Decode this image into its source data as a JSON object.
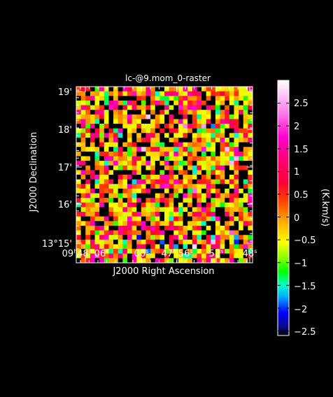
{
  "chart_data": {
    "type": "heatmap",
    "title": "lc-@9.mom_0-raster",
    "xlabel": "J2000 Right Ascension",
    "ylabel": "J2000 Declination",
    "colorbar_label": "(K.km/s)",
    "x_tick_labels": [
      {
        "main": "09",
        "h": "h",
        "mid": "48",
        "m": "m",
        "sec": "06",
        "s": "s"
      },
      {
        "main": "",
        "h": "",
        "mid": "",
        "m": "",
        "sec": "00",
        "s": "s"
      },
      {
        "main": "",
        "h": "",
        "mid": "47",
        "m": "m",
        "sec": "56",
        "s": "s"
      },
      {
        "main": "",
        "h": "",
        "mid": "",
        "m": "",
        "sec": "52",
        "s": "s"
      },
      {
        "main": "",
        "h": "",
        "mid": "",
        "m": "",
        "sec": "48",
        "s": "s"
      }
    ],
    "y_tick_labels": [
      "13°15'",
      "16'",
      "17'",
      "18'",
      "19'"
    ],
    "colorbar_ticks": [
      "2.5",
      "2",
      "1.5",
      "1",
      "0.5",
      "0",
      "−0.5",
      "−1",
      "−1.5",
      "−2",
      "−2.5"
    ],
    "colorbar_range": [
      -2.6,
      3.0
    ],
    "grid_columns": 38,
    "grid_rows": 38,
    "value_range": [
      -2.5,
      2.9
    ],
    "colormap": "rainbow"
  }
}
